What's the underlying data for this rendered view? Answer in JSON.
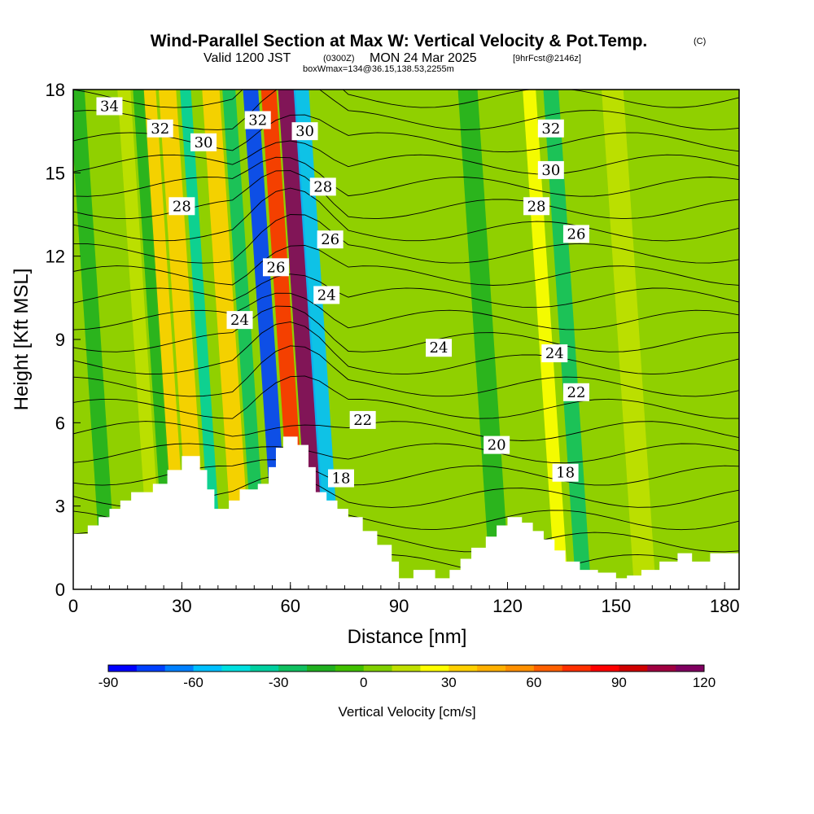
{
  "header": {
    "title": "Wind-Parallel Section at Max W: Vertical Velocity & Pot.Temp.",
    "copyright": "(C)",
    "valid_prefix": "Valid 1200 JST",
    "valid_z": "(0300Z)",
    "valid_date": "MON 24 Mar 2025",
    "forecast": "[9hrFcst@2146z]",
    "boxwmax": "boxWmax=134@36.15,138.53,2255m"
  },
  "chart_data": {
    "type": "heatmap",
    "xlabel": "Distance [nm]",
    "ylabel": "Height [Kft MSL]",
    "xlim": [
      0,
      184
    ],
    "ylim": [
      0,
      18
    ],
    "x_ticks": [
      0,
      30,
      60,
      90,
      120,
      150,
      180
    ],
    "y_ticks": [
      0,
      3,
      6,
      9,
      12,
      15,
      18
    ],
    "terrain": [
      [
        0,
        2
      ],
      [
        4,
        2.3
      ],
      [
        7,
        2.6
      ],
      [
        10,
        2.9
      ],
      [
        13,
        3.2
      ],
      [
        16,
        3.5
      ],
      [
        22,
        3.8
      ],
      [
        26,
        4.3
      ],
      [
        30,
        4.8
      ],
      [
        35,
        4.3
      ],
      [
        37,
        3.6
      ],
      [
        39,
        2.9
      ],
      [
        43,
        3.2
      ],
      [
        46,
        3.6
      ],
      [
        51,
        3.8
      ],
      [
        54,
        4.4
      ],
      [
        56,
        5.1
      ],
      [
        58,
        5.5
      ],
      [
        62,
        5.2
      ],
      [
        65,
        4.4
      ],
      [
        67,
        3.5
      ],
      [
        70,
        3.2
      ],
      [
        73,
        2.9
      ],
      [
        76,
        2.6
      ],
      [
        80,
        2.1
      ],
      [
        84,
        1.6
      ],
      [
        88,
        1.0
      ],
      [
        90,
        0.4
      ],
      [
        94,
        0.7
      ],
      [
        100,
        0.4
      ],
      [
        104,
        0.7
      ],
      [
        107,
        1.1
      ],
      [
        110,
        1.5
      ],
      [
        114,
        1.9
      ],
      [
        117,
        2.3
      ],
      [
        120,
        2.6
      ],
      [
        124,
        2.4
      ],
      [
        127,
        2.1
      ],
      [
        130,
        1.8
      ],
      [
        133,
        1.4
      ],
      [
        136,
        1.0
      ],
      [
        140,
        0.7
      ],
      [
        145,
        0.6
      ],
      [
        150,
        0.4
      ],
      [
        153,
        0.5
      ],
      [
        157,
        0.7
      ],
      [
        162,
        1.0
      ],
      [
        167,
        1.3
      ],
      [
        171,
        1.0
      ],
      [
        176,
        1.3
      ],
      [
        184,
        1.3
      ]
    ],
    "velocity_bands": [
      {
        "x": 35,
        "width": 1.6,
        "w": 35
      },
      {
        "x": 30,
        "width": 1.2,
        "w": 30
      },
      {
        "x": 40,
        "width": 1.0,
        "w": -35
      },
      {
        "x": 27,
        "width": 1.0,
        "w": -20
      },
      {
        "x": 47,
        "width": 1.6,
        "w": 30
      },
      {
        "x": 52,
        "width": 1.2,
        "w": -30
      },
      {
        "x": 58,
        "width": 1.4,
        "w": -80
      },
      {
        "x": 63,
        "width": 1.4,
        "w": 75
      },
      {
        "x": 68,
        "width": 1.6,
        "w": 115
      },
      {
        "x": 72,
        "width": 1.4,
        "w": -55
      },
      {
        "x": 23,
        "width": 1.2,
        "w": 15
      },
      {
        "x": 10,
        "width": 1.4,
        "w": -20
      },
      {
        "x": 135,
        "width": 1.2,
        "w": 25
      },
      {
        "x": 141,
        "width": 1.4,
        "w": -25
      },
      {
        "x": 118,
        "width": 1.8,
        "w": -15
      },
      {
        "x": 158,
        "width": 2.0,
        "w": 15
      }
    ],
    "potential_temperature_labels": [
      {
        "value": "34",
        "x": 10,
        "y": 17.4
      },
      {
        "value": "32",
        "x": 24,
        "y": 16.6
      },
      {
        "value": "30",
        "x": 36,
        "y": 16.1
      },
      {
        "value": "32",
        "x": 51,
        "y": 16.9
      },
      {
        "value": "30",
        "x": 64,
        "y": 16.5
      },
      {
        "value": "28",
        "x": 30,
        "y": 13.8
      },
      {
        "value": "28",
        "x": 69,
        "y": 14.5
      },
      {
        "value": "26",
        "x": 71,
        "y": 12.6
      },
      {
        "value": "26",
        "x": 56,
        "y": 11.6
      },
      {
        "value": "24",
        "x": 70,
        "y": 10.6
      },
      {
        "value": "24",
        "x": 46,
        "y": 9.7
      },
      {
        "value": "24",
        "x": 101,
        "y": 8.7
      },
      {
        "value": "24",
        "x": 133,
        "y": 8.5
      },
      {
        "value": "22",
        "x": 80,
        "y": 6.1
      },
      {
        "value": "22",
        "x": 139,
        "y": 7.1
      },
      {
        "value": "20",
        "x": 117,
        "y": 5.2
      },
      {
        "value": "18",
        "x": 74,
        "y": 4.0
      },
      {
        "value": "18",
        "x": 136,
        "y": 4.2
      },
      {
        "value": "32",
        "x": 132,
        "y": 16.6
      },
      {
        "value": "30",
        "x": 132,
        "y": 15.1
      },
      {
        "value": "28",
        "x": 128,
        "y": 13.8
      },
      {
        "value": "26",
        "x": 139,
        "y": 12.8
      }
    ],
    "colorbar": {
      "label": "Vertical Velocity [cm/s]",
      "ticks": [
        "-90",
        "-60",
        "-30",
        "0",
        "30",
        "60",
        "90",
        "120"
      ],
      "min": -90,
      "max": 120,
      "colors": [
        "#0000ff",
        "#0040ff",
        "#0080ff",
        "#00c0ff",
        "#00e0e0",
        "#00d0a0",
        "#10c060",
        "#20b020",
        "#40c000",
        "#80d000",
        "#c0e000",
        "#ffff00",
        "#ffd000",
        "#ffb000",
        "#ff9000",
        "#ff6000",
        "#ff3000",
        "#ff0000",
        "#d00000",
        "#a00040",
        "#800060"
      ]
    }
  }
}
